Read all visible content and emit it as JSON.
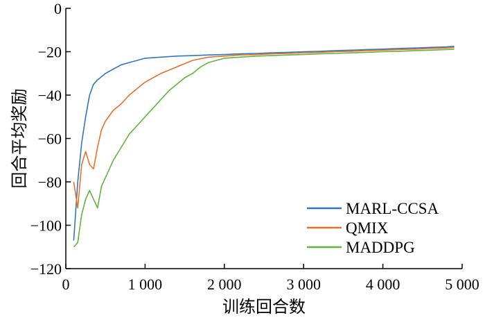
{
  "chart_data": {
    "type": "line",
    "title": "",
    "xlabel": "训练回合数",
    "ylabel": "回合平均奖励",
    "xlim": [
      0,
      5000
    ],
    "ylim": [
      -120,
      0
    ],
    "x_ticks": [
      {
        "value": 0,
        "label": "0"
      },
      {
        "value": 1000,
        "label": "1 000"
      },
      {
        "value": 2000,
        "label": "2 000"
      },
      {
        "value": 3000,
        "label": "3 000"
      },
      {
        "value": 4000,
        "label": "4 000"
      },
      {
        "value": 5000,
        "label": "5 000"
      }
    ],
    "y_ticks": [
      {
        "value": 0,
        "label": "0"
      },
      {
        "value": -20,
        "label": "−20"
      },
      {
        "value": -40,
        "label": "−40"
      },
      {
        "value": -60,
        "label": "−60"
      },
      {
        "value": -80,
        "label": "−80"
      },
      {
        "value": -100,
        "label": "−100"
      },
      {
        "value": -120,
        "label": "−120"
      }
    ],
    "grid": false,
    "legend_position": "bottom-right",
    "series": [
      {
        "name": "MARL-CCSA",
        "color": "#2f76c2",
        "x": [
          100,
          150,
          200,
          250,
          300,
          350,
          400,
          500,
          600,
          700,
          800,
          900,
          1000,
          1200,
          1400,
          1600,
          1800,
          2000,
          2200,
          2400,
          2600,
          2800,
          3000,
          3200,
          3400,
          3600,
          3800,
          4000,
          4200,
          4400,
          4600,
          4800,
          4900
        ],
        "y": [
          -107,
          -80,
          -62,
          -50,
          -40,
          -35,
          -33,
          -30,
          -28,
          -26,
          -25,
          -24,
          -23,
          -22.5,
          -22,
          -21.8,
          -21.5,
          -21.3,
          -21,
          -20.8,
          -20.5,
          -20.3,
          -20,
          -19.8,
          -19.5,
          -19.3,
          -19,
          -18.8,
          -18.5,
          -18.3,
          -18,
          -17.8,
          -17.5
        ]
      },
      {
        "name": "QMIX",
        "color": "#e8702a",
        "x": [
          100,
          150,
          200,
          250,
          300,
          350,
          400,
          450,
          500,
          600,
          700,
          800,
          900,
          1000,
          1200,
          1400,
          1600,
          1800,
          2000,
          2200,
          2400,
          2600,
          2800,
          3000,
          3200,
          3400,
          3600,
          3800,
          4000,
          4200,
          4400,
          4600,
          4800,
          4900
        ],
        "y": [
          -80,
          -92,
          -72,
          -66,
          -72,
          -74,
          -64,
          -56,
          -52,
          -47,
          -44,
          -40,
          -37,
          -34,
          -30,
          -27,
          -24,
          -22.5,
          -22,
          -21.5,
          -21.3,
          -21,
          -20.8,
          -20.5,
          -20.3,
          -20,
          -19.8,
          -19.5,
          -19.3,
          -19,
          -18.8,
          -18.5,
          -18.3,
          -18
        ]
      },
      {
        "name": "MADDPG",
        "color": "#5fb53b",
        "x": [
          100,
          150,
          200,
          250,
          300,
          350,
          400,
          450,
          500,
          600,
          700,
          800,
          900,
          1000,
          1100,
          1200,
          1300,
          1400,
          1500,
          1600,
          1700,
          1800,
          1900,
          2000,
          2200,
          2400,
          2600,
          2800,
          3000,
          3200,
          3400,
          3600,
          3800,
          4000,
          4200,
          4400,
          4600,
          4800,
          4900
        ],
        "y": [
          -110,
          -108,
          -95,
          -88,
          -84,
          -88,
          -92,
          -82,
          -78,
          -70,
          -64,
          -58,
          -54,
          -50,
          -46,
          -42,
          -38,
          -35,
          -32,
          -30,
          -27,
          -25,
          -24,
          -23,
          -22.5,
          -22,
          -21.8,
          -21.5,
          -21.3,
          -21,
          -20.8,
          -20.5,
          -20.3,
          -20,
          -19.8,
          -19.5,
          -19.3,
          -19,
          -18.8
        ]
      }
    ]
  }
}
